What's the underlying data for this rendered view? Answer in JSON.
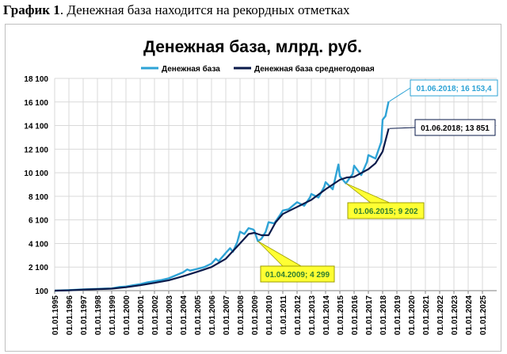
{
  "caption": {
    "bold": "График 1",
    "rest": ". Денежная база находится на рекордных отметках"
  },
  "chart_data": {
    "type": "line",
    "title": "Денежная база, млрд. руб.",
    "xlabel": "",
    "ylabel": "",
    "ylim": [
      100,
      18100
    ],
    "yticks": [
      100,
      2100,
      4100,
      6100,
      8100,
      10100,
      12100,
      14100,
      16100,
      18100
    ],
    "ytick_labels": [
      "100",
      "2 100",
      "4 100",
      "6 100",
      "8 100",
      "10 100",
      "12 100",
      "14 100",
      "16 100",
      "18 100"
    ],
    "xlim": [
      1995,
      2026
    ],
    "xtick_labels": [
      "01.01.1995",
      "01.01.1996",
      "01.01.1997",
      "01.01.1998",
      "01.01.1999",
      "01.01.2000",
      "01.01.2001",
      "01.01.2002",
      "01.01.2003",
      "01.01.2004",
      "01.01.2005",
      "01.01.2006",
      "01.01.2007",
      "01.01.2008",
      "01.01.2009",
      "01.01.2010",
      "01.01.2011",
      "01.01.2012",
      "01.01.2013",
      "01.01.2014",
      "01.01.2015",
      "01.01.2016",
      "01.01.2017",
      "01.01.2018",
      "01.01.2019",
      "01.01.2020",
      "01.01.2021",
      "01.01.2022",
      "01.01.2023",
      "01.01.2024",
      "01.01.2025"
    ],
    "grid": true,
    "legend_position": "top",
    "series": [
      {
        "name": "Денежная база",
        "color": "#2ea3d6",
        "points": [
          [
            1995.0,
            100
          ],
          [
            1996.0,
            150
          ],
          [
            1997.0,
            200
          ],
          [
            1997.5,
            230
          ],
          [
            1998.0,
            250
          ],
          [
            1998.5,
            270
          ],
          [
            1999.0,
            290
          ],
          [
            1999.5,
            400
          ],
          [
            2000.0,
            450
          ],
          [
            2000.5,
            560
          ],
          [
            2001.0,
            650
          ],
          [
            2001.5,
            800
          ],
          [
            2002.0,
            900
          ],
          [
            2002.5,
            1000
          ],
          [
            2003.0,
            1150
          ],
          [
            2003.5,
            1400
          ],
          [
            2004.0,
            1650
          ],
          [
            2004.3,
            1900
          ],
          [
            2004.5,
            1800
          ],
          [
            2005.0,
            1950
          ],
          [
            2005.5,
            2100
          ],
          [
            2006.0,
            2400
          ],
          [
            2006.3,
            2800
          ],
          [
            2006.5,
            2600
          ],
          [
            2007.0,
            3300
          ],
          [
            2007.3,
            3700
          ],
          [
            2007.5,
            3400
          ],
          [
            2007.8,
            4200
          ],
          [
            2008.0,
            5100
          ],
          [
            2008.3,
            4900
          ],
          [
            2008.6,
            5400
          ],
          [
            2008.9,
            5300
          ],
          [
            2009.0,
            5200
          ],
          [
            2009.25,
            4299
          ],
          [
            2009.5,
            4500
          ],
          [
            2009.8,
            5100
          ],
          [
            2010.0,
            5900
          ],
          [
            2010.4,
            5800
          ],
          [
            2010.8,
            6500
          ],
          [
            2011.0,
            6900
          ],
          [
            2011.4,
            7000
          ],
          [
            2011.8,
            7400
          ],
          [
            2012.0,
            7600
          ],
          [
            2012.5,
            7300
          ],
          [
            2012.9,
            8000
          ],
          [
            2013.0,
            8300
          ],
          [
            2013.5,
            8000
          ],
          [
            2013.9,
            8900
          ],
          [
            2014.0,
            9300
          ],
          [
            2014.5,
            8700
          ],
          [
            2014.9,
            10800
          ],
          [
            2015.0,
            9800
          ],
          [
            2015.42,
            9202
          ],
          [
            2015.9,
            10000
          ],
          [
            2016.0,
            10700
          ],
          [
            2016.5,
            9900
          ],
          [
            2016.9,
            11000
          ],
          [
            2017.0,
            11600
          ],
          [
            2017.5,
            11300
          ],
          [
            2017.9,
            12700
          ],
          [
            2018.0,
            14600
          ],
          [
            2018.2,
            14900
          ],
          [
            2018.42,
            16153.4
          ]
        ]
      },
      {
        "name": "Денежная база среднегодовая",
        "color": "#0a1a4a",
        "points": [
          [
            1995.0,
            100
          ],
          [
            1996.0,
            130
          ],
          [
            1997.0,
            190
          ],
          [
            1998.0,
            230
          ],
          [
            1999.0,
            270
          ],
          [
            2000.0,
            390
          ],
          [
            2001.0,
            560
          ],
          [
            2002.0,
            760
          ],
          [
            2003.0,
            980
          ],
          [
            2004.0,
            1320
          ],
          [
            2005.0,
            1700
          ],
          [
            2006.0,
            2100
          ],
          [
            2007.0,
            2800
          ],
          [
            2008.0,
            4100
          ],
          [
            2008.6,
            4900
          ],
          [
            2009.0,
            5000
          ],
          [
            2009.5,
            4800
          ],
          [
            2010.0,
            4800
          ],
          [
            2010.5,
            5900
          ],
          [
            2011.0,
            6600
          ],
          [
            2012.0,
            7200
          ],
          [
            2013.0,
            7800
          ],
          [
            2014.0,
            8700
          ],
          [
            2015.0,
            9500
          ],
          [
            2015.5,
            9700
          ],
          [
            2016.0,
            9750
          ],
          [
            2017.0,
            10400
          ],
          [
            2017.5,
            10900
          ],
          [
            2018.0,
            11900
          ],
          [
            2018.42,
            13851
          ]
        ]
      }
    ],
    "annotations": [
      {
        "text": "01.06.2018;  16 153,4",
        "x": 2018.42,
        "y": 16153.4,
        "style": "cyan"
      },
      {
        "text": "01.06.2018;  13 851",
        "x": 2018.42,
        "y": 13851,
        "style": "navy"
      },
      {
        "text": "01.06.2015;  9 202",
        "x": 2015.42,
        "y": 9202,
        "style": "yellow"
      },
      {
        "text": "01.04.2009;  4 299",
        "x": 2009.25,
        "y": 4299,
        "style": "yellow"
      }
    ]
  }
}
